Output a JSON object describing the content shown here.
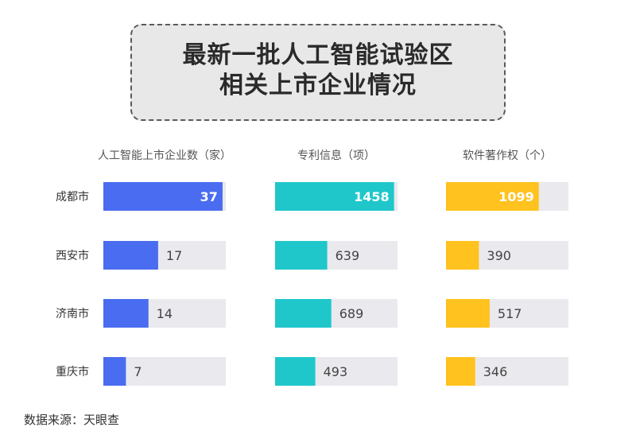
{
  "title_lines": [
    "最新一批人工智能试验区",
    "相关上市企业情况"
  ],
  "source": "数据来源：天眼查",
  "colors": {
    "track": "#e9e9ee",
    "label_inside": "#ffffff",
    "label_outside": "#444444",
    "row_label": "#333333",
    "header": "#555555"
  },
  "chart_data": {
    "type": "bar",
    "categories": [
      "成都市",
      "西安市",
      "济南市",
      "重庆市"
    ],
    "panels": [
      {
        "name": "人工智能上市企业数（家）",
        "color": "#4a6cf0",
        "max": 38,
        "values": [
          37,
          17,
          14,
          7
        ]
      },
      {
        "name": "专利信息（项）",
        "color": "#1fc7cb",
        "max": 1500,
        "values": [
          1458,
          639,
          689,
          493
        ]
      },
      {
        "name": "软件著作权（个）",
        "color": "#ffc21e",
        "max": 1450,
        "values": [
          1099,
          390,
          517,
          346
        ]
      }
    ]
  }
}
